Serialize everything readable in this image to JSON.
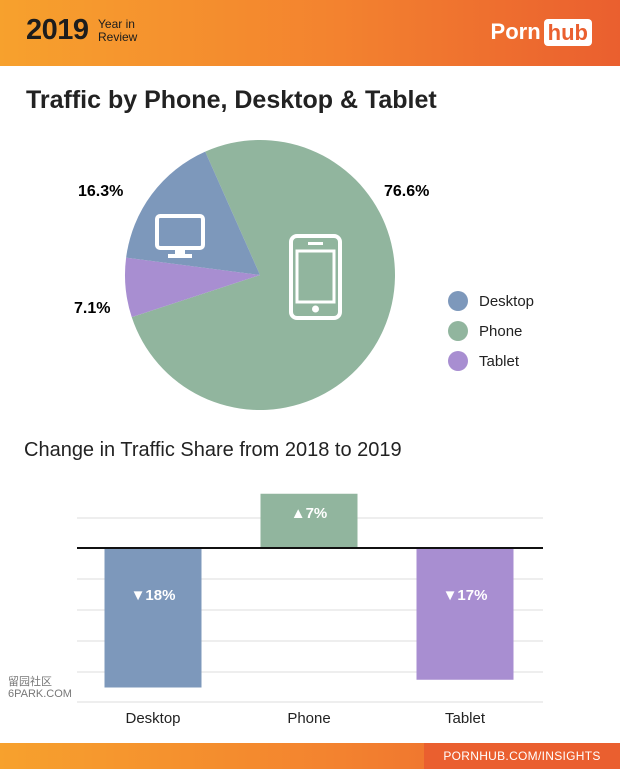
{
  "header": {
    "year": "2019",
    "year_in_review": "Year in Review",
    "logo_left": "Porn",
    "logo_right": "hub"
  },
  "title": "Traffic by Phone, Desktop & Tablet",
  "pie_labels": {
    "desktop": "16.3%",
    "phone": "76.6%",
    "tablet": "7.1%"
  },
  "legend": [
    {
      "label": "Desktop",
      "color": "#7d98bb"
    },
    {
      "label": "Phone",
      "color": "#91b59e"
    },
    {
      "label": "Tablet",
      "color": "#a88ed1"
    }
  ],
  "subtitle": "Change in Traffic Share from 2018 to 2019",
  "bar_labels": {
    "desktop": "▼18%",
    "phone": "▲7%",
    "tablet": "▼17%"
  },
  "footer": "PORNHUB.COM/INSIGHTS",
  "watermark": "留园社区 6PARK.COM",
  "colors": {
    "desktop": "#7d98bb",
    "phone": "#91b59e",
    "tablet": "#a88ed1",
    "accent": "#f3822f"
  },
  "chart_data": [
    {
      "type": "pie",
      "title": "Traffic by Phone, Desktop & Tablet",
      "categories": [
        "Desktop",
        "Phone",
        "Tablet"
      ],
      "values": [
        16.3,
        76.6,
        7.1
      ],
      "legend": "right"
    },
    {
      "type": "bar",
      "title": "Change in Traffic Share from 2018 to 2019",
      "categories": [
        "Desktop",
        "Phone",
        "Tablet"
      ],
      "values": [
        -18,
        7,
        -17
      ],
      "data_labels": [
        "▼18%",
        "▲7%",
        "▼17%"
      ],
      "ylim": [
        -20,
        10
      ],
      "grid": true
    }
  ]
}
